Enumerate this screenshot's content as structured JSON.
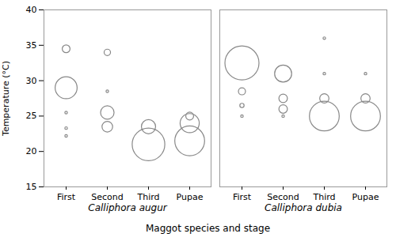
{
  "chart_data": {
    "type": "bubble",
    "xlabel": "Maggot species and stage",
    "ylabel": "Temperature (°C)",
    "ylim": [
      15,
      40
    ],
    "yticks": [
      15,
      20,
      25,
      30,
      35,
      40
    ],
    "grid": false,
    "color": "#888888",
    "groups": [
      "Calliphora augur",
      "Calliphora dubia"
    ],
    "categories": [
      "First",
      "Second",
      "Third",
      "Pupae"
    ],
    "points": [
      {
        "group": "Calliphora augur",
        "category": "First",
        "y": 34.5,
        "size": 0.55
      },
      {
        "group": "Calliphora augur",
        "category": "First",
        "y": 29.0,
        "size": 1.55
      },
      {
        "group": "Calliphora augur",
        "category": "First",
        "y": 25.5,
        "size": 0.18
      },
      {
        "group": "Calliphora augur",
        "category": "First",
        "y": 23.3,
        "size": 0.18
      },
      {
        "group": "Calliphora augur",
        "category": "First",
        "y": 22.2,
        "size": 0.18
      },
      {
        "group": "Calliphora augur",
        "category": "Second",
        "y": 34.0,
        "size": 0.45
      },
      {
        "group": "Calliphora augur",
        "category": "Second",
        "y": 28.5,
        "size": 0.18
      },
      {
        "group": "Calliphora augur",
        "category": "Second",
        "y": 25.5,
        "size": 0.95
      },
      {
        "group": "Calliphora augur",
        "category": "Second",
        "y": 23.5,
        "size": 0.75
      },
      {
        "group": "Calliphora augur",
        "category": "Third",
        "y": 21.0,
        "size": 2.3
      },
      {
        "group": "Calliphora augur",
        "category": "Third",
        "y": 23.5,
        "size": 1.0
      },
      {
        "group": "Calliphora augur",
        "category": "Pupae",
        "y": 25.0,
        "size": 0.55
      },
      {
        "group": "Calliphora augur",
        "category": "Pupae",
        "y": 21.5,
        "size": 2.1
      },
      {
        "group": "Calliphora augur",
        "category": "Pupae",
        "y": 24.0,
        "size": 1.35
      },
      {
        "group": "Calliphora dubia",
        "category": "First",
        "y": 32.5,
        "size": 2.4
      },
      {
        "group": "Calliphora dubia",
        "category": "First",
        "y": 28.5,
        "size": 0.5
      },
      {
        "group": "Calliphora dubia",
        "category": "First",
        "y": 26.5,
        "size": 0.3
      },
      {
        "group": "Calliphora dubia",
        "category": "First",
        "y": 25.0,
        "size": 0.18
      },
      {
        "group": "Calliphora dubia",
        "category": "Second",
        "y": 31.0,
        "size": 1.2
      },
      {
        "group": "Calliphora dubia",
        "category": "Second",
        "y": 27.5,
        "size": 0.6
      },
      {
        "group": "Calliphora dubia",
        "category": "Second",
        "y": 26.0,
        "size": 0.6
      },
      {
        "group": "Calliphora dubia",
        "category": "Second",
        "y": 25.0,
        "size": 0.18
      },
      {
        "group": "Calliphora dubia",
        "category": "Third",
        "y": 36.0,
        "size": 0.18
      },
      {
        "group": "Calliphora dubia",
        "category": "Third",
        "y": 31.0,
        "size": 0.18
      },
      {
        "group": "Calliphora dubia",
        "category": "Third",
        "y": 27.5,
        "size": 0.65
      },
      {
        "group": "Calliphora dubia",
        "category": "Third",
        "y": 25.0,
        "size": 2.1
      },
      {
        "group": "Calliphora dubia",
        "category": "Pupae",
        "y": 31.0,
        "size": 0.18
      },
      {
        "group": "Calliphora dubia",
        "category": "Pupae",
        "y": 27.5,
        "size": 0.65
      },
      {
        "group": "Calliphora dubia",
        "category": "Pupae",
        "y": 25.0,
        "size": 2.1
      }
    ]
  }
}
